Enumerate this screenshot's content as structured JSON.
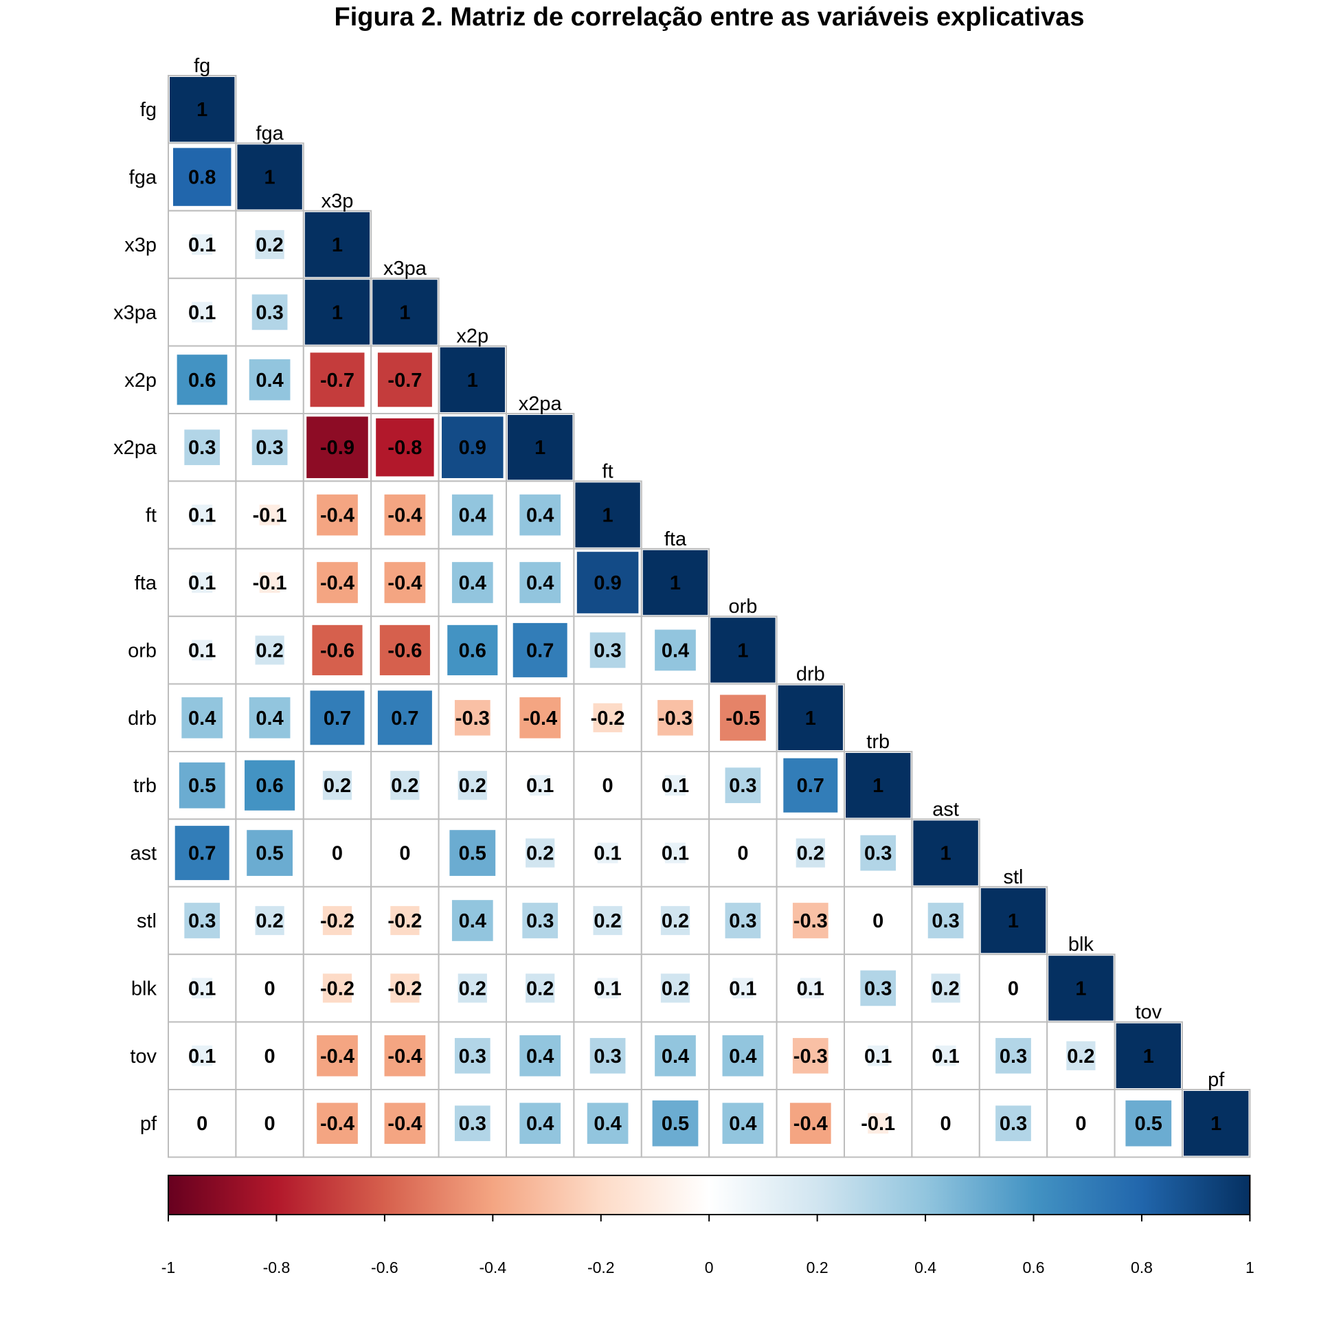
{
  "chart_data": {
    "type": "heatmap",
    "title": "Figura 2. Matriz de correlação entre as variáveis explicativas",
    "variables": [
      "fg",
      "fga",
      "x3p",
      "x3pa",
      "x2p",
      "x2pa",
      "ft",
      "fta",
      "orb",
      "drb",
      "trb",
      "ast",
      "stl",
      "blk",
      "tov",
      "pf"
    ],
    "matrix": [
      [
        1
      ],
      [
        0.8,
        1
      ],
      [
        0.1,
        0.2,
        1
      ],
      [
        0.1,
        0.3,
        1,
        1
      ],
      [
        0.6,
        0.4,
        -0.7,
        -0.7,
        1
      ],
      [
        0.3,
        0.3,
        -0.9,
        -0.8,
        0.9,
        1
      ],
      [
        0.1,
        -0.1,
        -0.4,
        -0.4,
        0.4,
        0.4,
        1
      ],
      [
        0.1,
        -0.1,
        -0.4,
        -0.4,
        0.4,
        0.4,
        0.9,
        1
      ],
      [
        0.1,
        0.2,
        -0.6,
        -0.6,
        0.6,
        0.7,
        0.3,
        0.4,
        1
      ],
      [
        0.4,
        0.4,
        0.7,
        0.7,
        -0.3,
        -0.4,
        -0.2,
        -0.3,
        -0.5,
        1
      ],
      [
        0.5,
        0.6,
        0.2,
        0.2,
        0.2,
        0.1,
        0,
        0.1,
        0.3,
        0.7,
        1
      ],
      [
        0.7,
        0.5,
        0,
        0,
        0.5,
        0.2,
        0.1,
        0.1,
        0,
        0.2,
        0.3,
        1
      ],
      [
        0.3,
        0.2,
        -0.2,
        -0.2,
        0.4,
        0.3,
        0.2,
        0.2,
        0.3,
        -0.3,
        0,
        0.3,
        1
      ],
      [
        0.1,
        0,
        -0.2,
        -0.2,
        0.2,
        0.2,
        0.1,
        0.2,
        0.1,
        0.1,
        0.3,
        0.2,
        0,
        1
      ],
      [
        0.1,
        0,
        -0.4,
        -0.4,
        0.3,
        0.4,
        0.3,
        0.4,
        0.4,
        -0.3,
        0.1,
        0.1,
        0.3,
        0.2,
        1
      ],
      [
        0,
        0,
        -0.4,
        -0.4,
        0.3,
        0.4,
        0.4,
        0.5,
        0.4,
        -0.4,
        -0.1,
        0,
        0.3,
        0,
        0.5,
        1
      ]
    ],
    "colorbar": {
      "range": [
        -1,
        1
      ],
      "ticks": [
        "-1",
        "-0.8",
        "-0.6",
        "-0.4",
        "-0.2",
        "0",
        "0.2",
        "0.4",
        "0.6",
        "0.8",
        "1"
      ],
      "colors": [
        "#67001F",
        "#B2182B",
        "#D6604D",
        "#F4A582",
        "#FDDBC7",
        "#FFFFFF",
        "#D1E5F0",
        "#92C5DE",
        "#4393C3",
        "#2166AC",
        "#053061"
      ]
    }
  }
}
